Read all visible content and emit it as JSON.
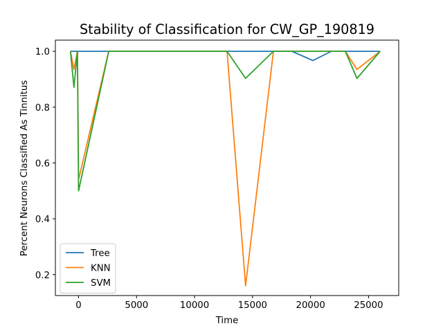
{
  "chart_data": {
    "type": "line",
    "title": "Stability of Classification for CW_GP_190819",
    "xlabel": "Time",
    "ylabel": "Percent Neurons Classified As Tinnitus",
    "xlim": [
      -2000,
      27600
    ],
    "ylim": [
      0.125,
      1.04
    ],
    "xticks": [
      0,
      5000,
      10000,
      15000,
      20000,
      25000
    ],
    "xtick_labels": [
      "0",
      "5000",
      "10000",
      "15000",
      "20000",
      "25000"
    ],
    "yticks": [
      0.2,
      0.4,
      0.6,
      0.8,
      1.0
    ],
    "ytick_labels": [
      "0.2",
      "0.4",
      "0.6",
      "0.8",
      "1.0"
    ],
    "grid": false,
    "legend_position": "lower left",
    "series": [
      {
        "name": "Tree",
        "color": "#1f77b4",
        "x": [
          -700,
          -400,
          -100,
          0,
          2600,
          12800,
          14400,
          16800,
          18400,
          20200,
          21800,
          23000,
          24000,
          26000
        ],
        "y": [
          1.0,
          1.0,
          1.0,
          1.0,
          1.0,
          1.0,
          1.0,
          1.0,
          1.0,
          0.967,
          1.0,
          1.0,
          1.0,
          1.0
        ]
      },
      {
        "name": "KNN",
        "color": "#ff7f0e",
        "x": [
          -700,
          -400,
          -100,
          0,
          2600,
          12800,
          14400,
          16800,
          18400,
          20200,
          21800,
          23000,
          24000,
          26000
        ],
        "y": [
          1.0,
          0.935,
          1.0,
          0.54,
          1.0,
          1.0,
          0.16,
          1.0,
          1.0,
          1.0,
          1.0,
          1.0,
          0.935,
          1.0
        ]
      },
      {
        "name": "SVM",
        "color": "#2ca02c",
        "x": [
          -700,
          -400,
          -100,
          0,
          2600,
          12800,
          14400,
          16800,
          18400,
          20200,
          21800,
          23000,
          24000,
          26000
        ],
        "y": [
          1.0,
          0.871,
          1.0,
          0.5,
          1.0,
          1.0,
          0.903,
          1.0,
          1.0,
          1.0,
          1.0,
          1.0,
          0.903,
          1.0
        ]
      }
    ]
  }
}
